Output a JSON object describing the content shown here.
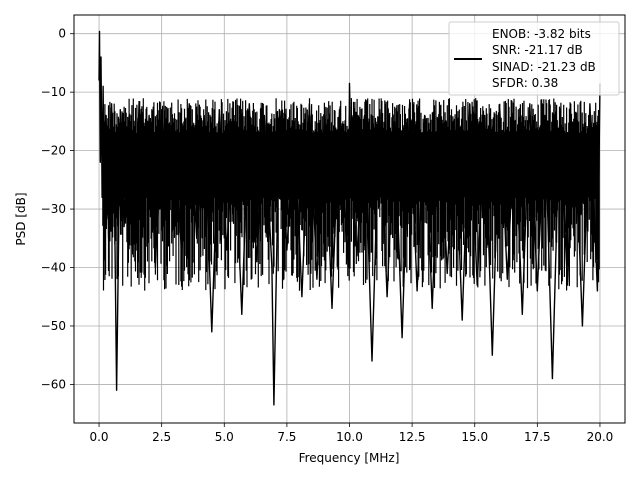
{
  "chart_data": {
    "type": "line",
    "xlabel": "Frequency [MHz]",
    "ylabel": "PSD [dB]",
    "xlim": [
      -1.0,
      21.0
    ],
    "ylim": [
      -66.6,
      3.2
    ],
    "xticks": [
      0.0,
      2.5,
      5.0,
      7.5,
      10.0,
      12.5,
      15.0,
      17.5,
      20.0
    ],
    "xtick_labels": [
      "0.0",
      "2.5",
      "5.0",
      "7.5",
      "10.0",
      "12.5",
      "15.0",
      "17.5",
      "20.0"
    ],
    "yticks": [
      0,
      -10,
      -20,
      -30,
      -40,
      -50,
      -60
    ],
    "ytick_labels": [
      "0",
      "−10",
      "−20",
      "−30",
      "−40",
      "−50",
      "−60"
    ],
    "grid": true,
    "legend_position": "top-right",
    "legend_lines": [
      "ENOB: -3.82 bits",
      "SNR: -21.17 dB",
      "SINAD: -21.23 dB",
      "SFDR: 0.38"
    ],
    "line_color": "#000000",
    "series": [
      {
        "x": [
          0.0,
          0.02,
          0.05,
          0.08,
          0.12,
          0.16,
          0.2,
          0.28,
          0.38,
          0.5,
          0.62,
          0.7,
          0.85,
          1.0,
          1.2,
          1.4,
          1.6,
          1.8,
          2.0,
          2.25,
          2.5,
          2.75,
          3.0,
          3.3,
          3.6,
          3.9,
          4.2,
          4.5,
          4.8,
          5.1,
          5.4,
          5.7,
          6.0,
          6.3,
          6.6,
          6.9,
          6.98,
          7.2,
          7.5,
          7.8,
          8.1,
          8.4,
          8.7,
          9.0,
          9.3,
          9.6,
          9.95,
          10.0,
          10.05,
          10.3,
          10.6,
          10.9,
          11.2,
          11.5,
          11.8,
          12.1,
          12.4,
          12.7,
          13.0,
          13.3,
          13.6,
          13.9,
          14.2,
          14.5,
          14.8,
          15.1,
          15.4,
          15.7,
          16.0,
          16.3,
          16.6,
          16.9,
          17.2,
          17.5,
          17.8,
          18.1,
          18.4,
          18.7,
          19.0,
          19.3,
          19.6,
          19.9,
          20.0
        ],
        "y": [
          -8,
          0.4,
          -22,
          -4,
          -28,
          -9,
          -25,
          -14,
          -35,
          -12,
          -30,
          -61,
          -13,
          -33,
          -14,
          -36,
          -12,
          -32,
          -14,
          -40,
          -13,
          -34,
          -15,
          -38,
          -12,
          -35,
          -14,
          -51,
          -13,
          -37,
          -15,
          -48,
          -12,
          -39,
          -14,
          -40,
          -63.5,
          -13,
          -37,
          -15,
          -45,
          -12,
          -42,
          -14,
          -47,
          -13,
          -40,
          -8.5,
          -20,
          -38,
          -14,
          -56,
          -13,
          -45,
          -15,
          -52,
          -12,
          -44,
          -14,
          -47,
          -13,
          -41,
          -15,
          -49,
          -12,
          -43,
          -14,
          -55,
          -13,
          -42,
          -15,
          -48,
          -12,
          -44,
          -14,
          -59,
          -13,
          -43,
          -15,
          -50,
          -12,
          -44,
          -8.5
        ]
      }
    ]
  }
}
